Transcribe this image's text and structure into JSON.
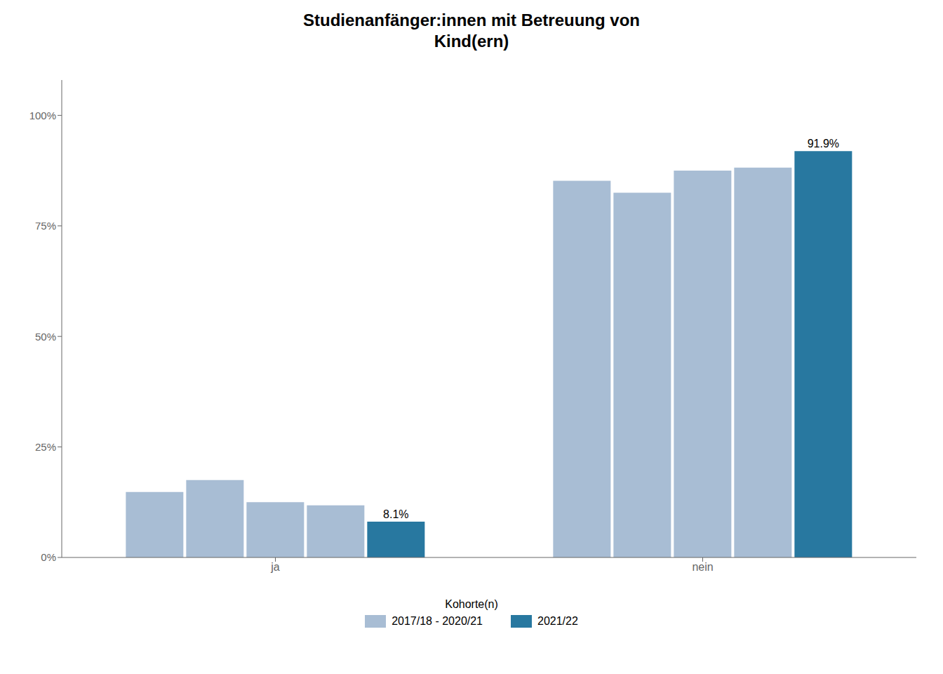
{
  "chart_data": {
    "type": "bar",
    "title": "Studienanfänger:innen mit Betreuung von\nKind(ern)",
    "categories": [
      "ja",
      "nein"
    ],
    "series": [
      {
        "name": "2017/18 - 2020/21",
        "color": "#a8bdd4",
        "values": [
          0.148,
          0.852
        ]
      },
      {
        "name": "2017/18 - 2020/21",
        "color": "#a8bdd4",
        "values": [
          0.175,
          0.825
        ]
      },
      {
        "name": "2017/18 - 2020/21",
        "color": "#a8bdd4",
        "values": [
          0.125,
          0.875
        ]
      },
      {
        "name": "2017/18 - 2020/21",
        "color": "#a8bdd4",
        "values": [
          0.118,
          0.882
        ]
      },
      {
        "name": "2021/22",
        "color": "#2878a0",
        "values": [
          0.081,
          0.919
        ],
        "value_labels": [
          "8.1%",
          "91.9%"
        ]
      }
    ],
    "legend_title": "Kohorte(n)",
    "ylim": [
      0,
      1.08
    ],
    "yticks": [
      {
        "value": 0.0,
        "label": "0%"
      },
      {
        "value": 0.25,
        "label": "25%"
      },
      {
        "value": 0.5,
        "label": "50%"
      },
      {
        "value": 0.75,
        "label": "75%"
      },
      {
        "value": 1.0,
        "label": "100%"
      }
    ],
    "grid": false
  }
}
